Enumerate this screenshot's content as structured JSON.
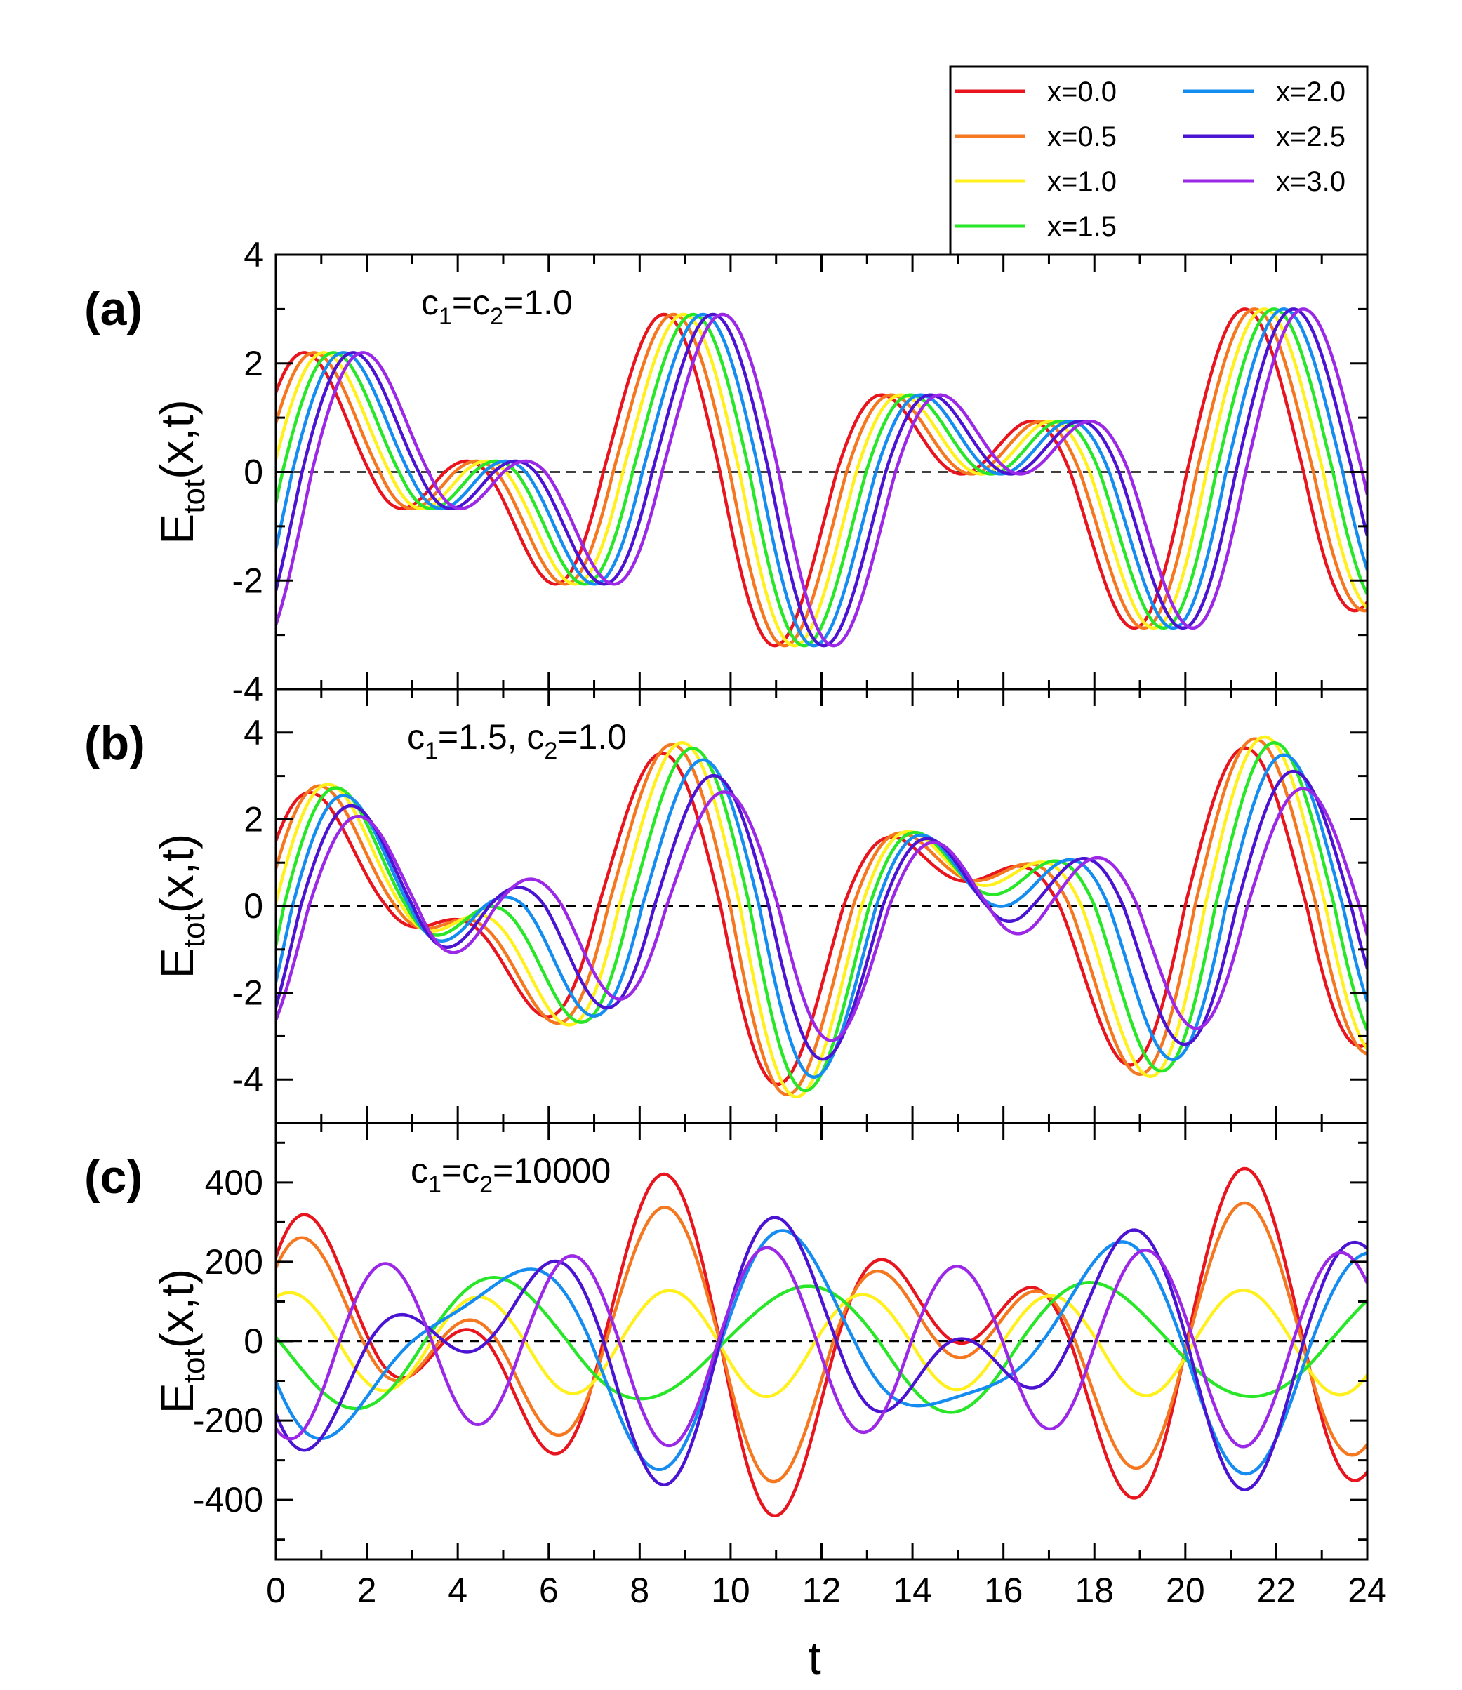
{
  "chart_data": {
    "type": "line",
    "x": {
      "label": "t",
      "range": [
        0,
        24
      ],
      "ticks": [
        "0",
        "2",
        "4",
        "6",
        "8",
        "10",
        "12",
        "14",
        "16",
        "18",
        "20",
        "22",
        "24"
      ]
    },
    "ylabel_parts": {
      "main": "E",
      "sub": "tot",
      "rest": "(x,t)"
    },
    "legend": [
      {
        "label": "x=0.0",
        "x": 0.0,
        "color": "#e8141e"
      },
      {
        "label": "x=0.5",
        "x": 0.5,
        "color": "#f57820"
      },
      {
        "label": "x=1.0",
        "x": 1.0,
        "color": "#fff01e"
      },
      {
        "label": "x=1.5",
        "x": 1.5,
        "color": "#28e628"
      },
      {
        "label": "x=2.0",
        "x": 2.0,
        "color": "#148cf0"
      },
      {
        "label": "x=2.5",
        "x": 2.5,
        "color": "#4b14d2"
      },
      {
        "label": "x=3.0",
        "x": 3.0,
        "color": "#9b28e6"
      }
    ],
    "model": "E_tot(x,t) = sum over modes k=1,2 of a_k * sin(w_k*(t - x) + phi_k) with mode frequencies 2pi/4.2 and 2pi/6.6 (beat pattern)",
    "panels": [
      {
        "label": "(a)",
        "param_parts": [
          "c",
          "1",
          "=c",
          "2",
          "=1.0"
        ],
        "ylim": [
          -4,
          4
        ],
        "yticks": [
          -4,
          -2,
          0,
          2,
          4
        ],
        "ytick_labels": [
          "-4",
          "-2",
          "0",
          "2",
          "4"
        ],
        "peak_max": 3.0,
        "trough_min": -3.2,
        "modes": [
          {
            "amp": 1.6,
            "freq": 1.496,
            "phase": -0.4,
            "slope": 0.0
          },
          {
            "amp": 1.6,
            "freq": 0.952,
            "phase": 0.05,
            "slope": 0.0
          }
        ]
      },
      {
        "label": "(b)",
        "param_parts": [
          "c",
          "1",
          "=1.5, c",
          "2",
          "=1.0"
        ],
        "ylim": [
          -5,
          5
        ],
        "yticks": [
          -4,
          -2,
          0,
          2,
          4
        ],
        "ytick_labels": [
          "-4",
          "-2",
          "0",
          "2",
          "4"
        ],
        "peak_max": 3.9,
        "trough_min": -4.4,
        "modes": [
          {
            "amp": 2.0,
            "freq": 1.496,
            "phase": -0.4,
            "slope": 0.15
          },
          {
            "amp": 2.0,
            "freq": 0.952,
            "phase": 0.05,
            "slope": 0.5
          }
        ]
      },
      {
        "label": "(c)",
        "param_parts": [
          "c",
          "1",
          "=c",
          "2",
          "=10000"
        ],
        "ylim": [
          -550,
          550
        ],
        "yticks": [
          -400,
          -200,
          0,
          200,
          400
        ],
        "ytick_labels": [
          "-400",
          "-200",
          "0",
          "200",
          "400"
        ],
        "peak_max": 435,
        "trough_min": -440,
        "modes": [
          {
            "amp": 200,
            "freq": 1.496,
            "phase": -0.4,
            "slope": 0.55,
            "standing": true
          },
          {
            "amp": 200,
            "freq": 0.952,
            "phase": 0.05,
            "slope": 0.85,
            "standing": true
          }
        ]
      }
    ]
  }
}
